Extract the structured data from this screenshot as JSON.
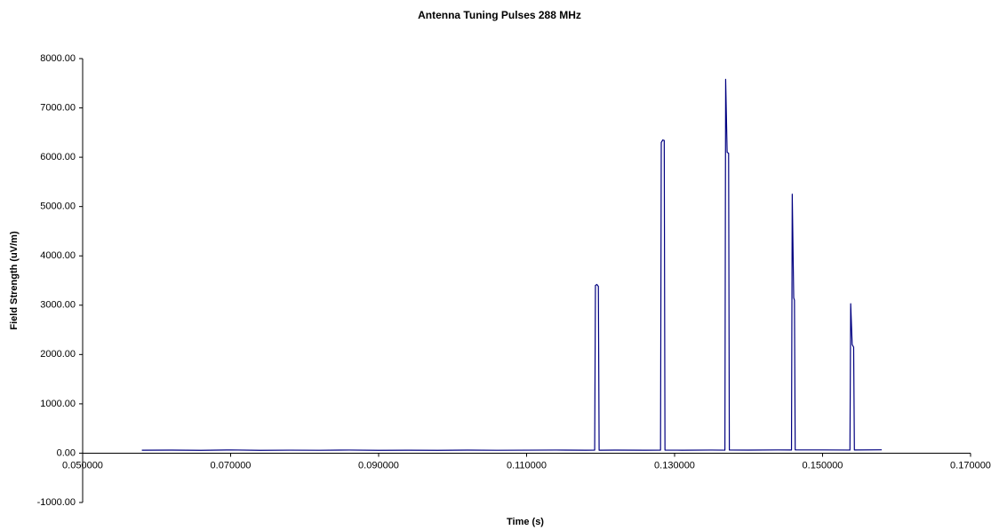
{
  "chart_data": {
    "type": "line",
    "title": "Antenna Tuning Pulses 288 MHz",
    "x_label": "Time (s)",
    "y_label": "Field Strength (uV/m)",
    "x": [
      0.058,
      0.062,
      0.066,
      0.07,
      0.074,
      0.078,
      0.082,
      0.086,
      0.09,
      0.094,
      0.098,
      0.102,
      0.106,
      0.11,
      0.114,
      0.118,
      0.1192,
      0.1193,
      0.1195,
      0.1197,
      0.1198,
      0.122,
      0.126,
      0.1281,
      0.1282,
      0.1284,
      0.1286,
      0.1287,
      0.131,
      0.135,
      0.1368,
      0.1369,
      0.1371,
      0.1373,
      0.1374,
      0.14,
      0.144,
      0.1458,
      0.1459,
      0.1461,
      0.1462,
      0.1463,
      0.15,
      0.1537,
      0.1538,
      0.154,
      0.1542,
      0.1543,
      0.158
    ],
    "series": [
      {
        "color": "#000080",
        "values": [
          60,
          62,
          58,
          65,
          57,
          61,
          59,
          63,
          58,
          60,
          57,
          62,
          59,
          61,
          63,
          60,
          62,
          3400,
          3420,
          3380,
          60,
          62,
          60,
          61,
          6300,
          6350,
          6340,
          62,
          60,
          63,
          61,
          7580,
          6100,
          6080,
          63,
          62,
          65,
          64,
          5250,
          3150,
          3100,
          66,
          65,
          63,
          3030,
          2200,
          2150,
          64,
          68
        ]
      }
    ],
    "xlim": [
      0.05,
      0.17
    ],
    "xticks": [
      {
        "value": 0.05,
        "label": "0.050000"
      },
      {
        "value": 0.07,
        "label": "0.070000"
      },
      {
        "value": 0.09,
        "label": "0.090000"
      },
      {
        "value": 0.11,
        "label": "0.110000"
      },
      {
        "value": 0.13,
        "label": "0.130000"
      },
      {
        "value": 0.15,
        "label": "0.150000"
      },
      {
        "value": 0.17,
        "label": "0.170000"
      }
    ],
    "ylim": [
      -1000,
      8000
    ],
    "yticks": [
      {
        "value": -1000,
        "label": "-1000.00"
      },
      {
        "value": 0,
        "label": "0.00"
      },
      {
        "value": 1000,
        "label": "1000.00"
      },
      {
        "value": 2000,
        "label": "2000.00"
      },
      {
        "value": 3000,
        "label": "3000.00"
      },
      {
        "value": 4000,
        "label": "4000.00"
      },
      {
        "value": 5000,
        "label": "5000.00"
      },
      {
        "value": 6000,
        "label": "6000.00"
      },
      {
        "value": 7000,
        "label": "7000.00"
      },
      {
        "value": 8000,
        "label": "8000.00"
      }
    ],
    "grid": false
  }
}
